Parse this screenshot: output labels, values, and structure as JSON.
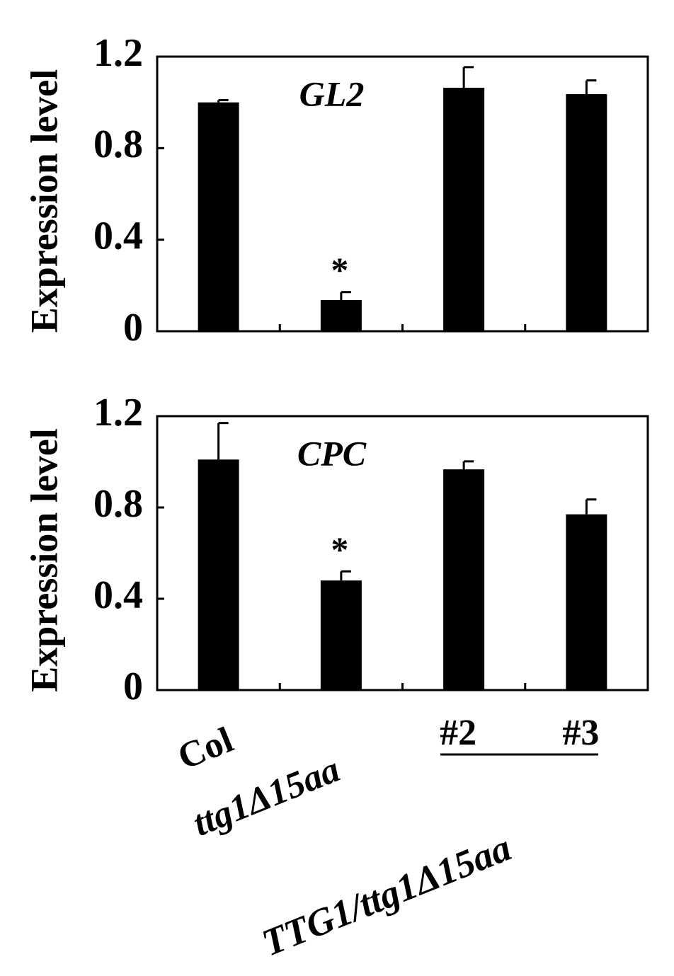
{
  "chart_data": [
    {
      "type": "bar",
      "title": "GL2",
      "y_label": "Expression level",
      "categories": [
        null,
        null,
        null,
        null
      ],
      "values": [
        1.0,
        0.136,
        1.064,
        1.036
      ],
      "errors": [
        0.01,
        0.035,
        0.09,
        0.06
      ],
      "markers": [
        null,
        "*",
        null,
        null
      ],
      "color": "#000000",
      "ylim": [
        0,
        1.2
      ],
      "yticks": [
        0,
        0.4,
        0.8,
        1.2
      ]
    },
    {
      "type": "bar",
      "title": "CPC",
      "y_label": "Expression level",
      "categories": [
        "Col",
        "ttg1Δ15aa",
        "#2",
        "#3"
      ],
      "group_label": "TTG1/ttg1Δ15aa",
      "values": [
        1.01,
        0.48,
        0.967,
        0.77
      ],
      "errors": [
        0.16,
        0.04,
        0.035,
        0.065
      ],
      "markers": [
        null,
        "*",
        null,
        null
      ],
      "color": "#000000",
      "ylim": [
        0,
        1.2
      ],
      "yticks": [
        0,
        0.4,
        0.8,
        1.2
      ]
    }
  ]
}
